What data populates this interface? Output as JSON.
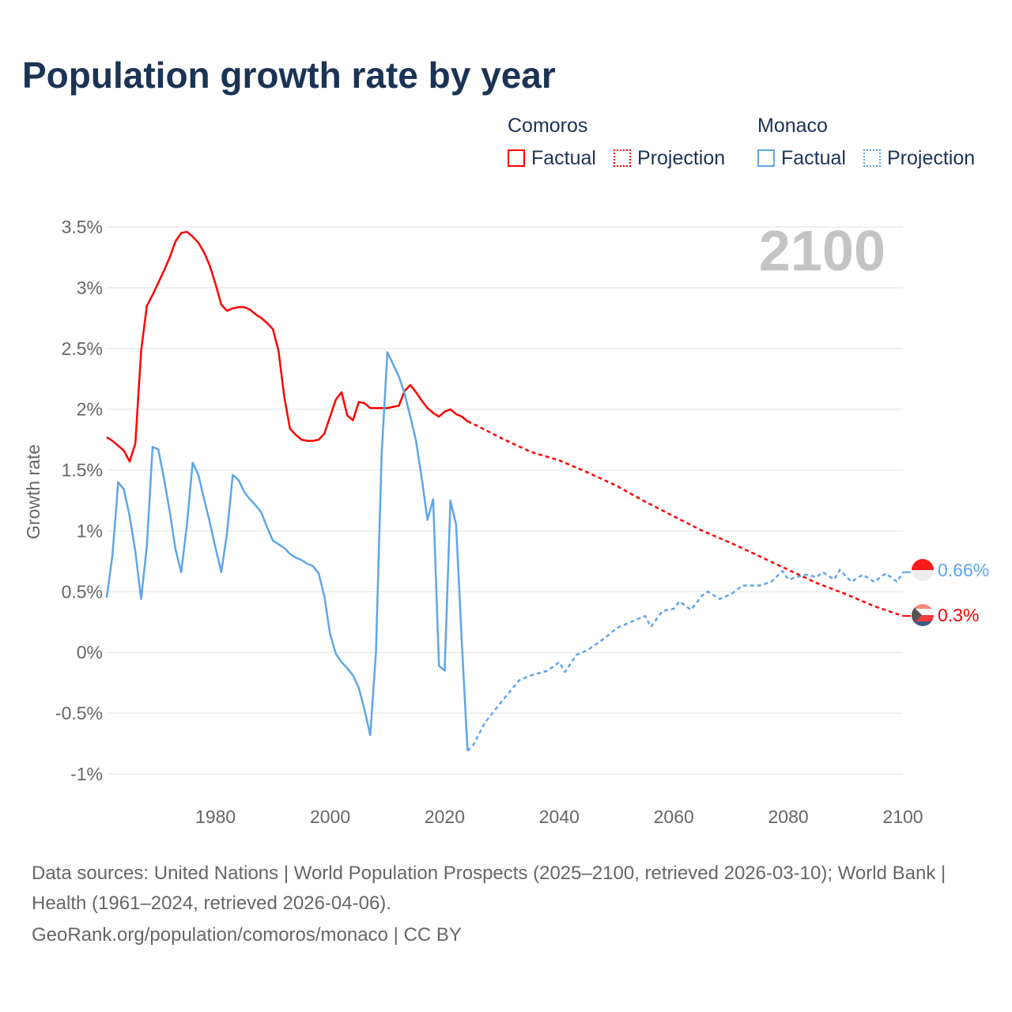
{
  "title": "Population growth rate by year",
  "legend": {
    "groups": [
      {
        "name": "Comoros",
        "color": "#ff0000",
        "factual": "Factual",
        "projection": "Projection"
      },
      {
        "name": "Monaco",
        "color": "#5ea6ea",
        "factual": "Factual",
        "projection": "Projection"
      }
    ]
  },
  "year_label": "2100",
  "end_labels": {
    "monaco": "0.66%",
    "comoros": "0.3%"
  },
  "footer": {
    "line1": "Data sources: United Nations | World Population Prospects (2025–2100, retrieved 2026-03-10); World Bank | Health (1961–2024, retrieved 2026-04-06).",
    "line2": "GeoRank.org/population/comoros/monaco | CC BY"
  },
  "chart_data": {
    "type": "line",
    "title": "Population growth rate by year",
    "ylabel": "Growth rate",
    "xlabel": "",
    "xlim": [
      1961,
      2100
    ],
    "ylim": [
      -1,
      3.5
    ],
    "grid": true,
    "yticks": [
      -1,
      -0.5,
      0,
      0.5,
      1,
      1.5,
      2,
      2.5,
      3,
      3.5
    ],
    "ytick_labels": [
      "-1%",
      "-0.5%",
      "0%",
      "0.5%",
      "1%",
      "1.5%",
      "2%",
      "2.5%",
      "3%",
      "3.5%"
    ],
    "xticks": [
      1980,
      2000,
      2020,
      2040,
      2060,
      2080,
      2100
    ],
    "xtick_labels": [
      "1980",
      "2000",
      "2020",
      "2040",
      "2060",
      "2080",
      "2100"
    ],
    "series": [
      {
        "name": "Comoros Factual",
        "color": "#ff0000",
        "dash": false,
        "x": [
          1961,
          1962,
          1963,
          1964,
          1965,
          1966,
          1967,
          1968,
          1969,
          1970,
          1971,
          1972,
          1973,
          1974,
          1975,
          1976,
          1977,
          1978,
          1979,
          1980,
          1981,
          1982,
          1983,
          1984,
          1985,
          1986,
          1987,
          1988,
          1989,
          1990,
          1991,
          1992,
          1993,
          1994,
          1995,
          1996,
          1997,
          1998,
          1999,
          2000,
          2001,
          2002,
          2003,
          2004,
          2005,
          2006,
          2007,
          2008,
          2009,
          2010,
          2011,
          2012,
          2013,
          2014,
          2015,
          2016,
          2017,
          2018,
          2019,
          2020,
          2021,
          2022,
          2023,
          2024
        ],
        "y": [
          1.77,
          1.74,
          1.7,
          1.66,
          1.57,
          1.72,
          2.48,
          2.85,
          2.94,
          3.04,
          3.14,
          3.25,
          3.38,
          3.45,
          3.46,
          3.42,
          3.37,
          3.29,
          3.18,
          3.03,
          2.86,
          2.81,
          2.83,
          2.84,
          2.84,
          2.82,
          2.78,
          2.75,
          2.71,
          2.66,
          2.48,
          2.1,
          1.84,
          1.79,
          1.75,
          1.74,
          1.74,
          1.75,
          1.8,
          1.94,
          2.08,
          2.14,
          1.95,
          1.91,
          2.06,
          2.05,
          2.01,
          2.01,
          2.01,
          2.01,
          2.02,
          2.03,
          2.15,
          2.2,
          2.14,
          2.07,
          2.01,
          1.97,
          1.94,
          1.98,
          2.0,
          1.96,
          1.94,
          1.9
        ]
      },
      {
        "name": "Comoros Projection",
        "color": "#ff0000",
        "dash": true,
        "x": [
          2024,
          2025,
          2030,
          2035,
          2040,
          2045,
          2050,
          2055,
          2060,
          2065,
          2070,
          2075,
          2080,
          2085,
          2090,
          2095,
          2100
        ],
        "y": [
          1.9,
          1.88,
          1.76,
          1.65,
          1.58,
          1.48,
          1.37,
          1.24,
          1.12,
          1.0,
          0.9,
          0.79,
          0.68,
          0.57,
          0.48,
          0.38,
          0.3
        ]
      },
      {
        "name": "Monaco Factual",
        "color": "#5ea6ea",
        "dash": false,
        "x": [
          1961,
          1962,
          1963,
          1964,
          1965,
          1966,
          1967,
          1968,
          1969,
          1970,
          1971,
          1972,
          1973,
          1974,
          1975,
          1976,
          1977,
          1978,
          1979,
          1980,
          1981,
          1982,
          1983,
          1984,
          1985,
          1986,
          1987,
          1988,
          1989,
          1990,
          1991,
          1992,
          1993,
          1994,
          1995,
          1996,
          1997,
          1998,
          1999,
          2000,
          2001,
          2002,
          2003,
          2004,
          2005,
          2006,
          2007,
          2008,
          2009,
          2010,
          2011,
          2012,
          2013,
          2014,
          2015,
          2016,
          2017,
          2018,
          2019,
          2020,
          2021,
          2022,
          2023,
          2024
        ],
        "y": [
          0.45,
          0.8,
          1.4,
          1.34,
          1.12,
          0.83,
          0.44,
          0.87,
          1.69,
          1.67,
          1.43,
          1.16,
          0.85,
          0.66,
          1.05,
          1.56,
          1.46,
          1.26,
          1.07,
          0.86,
          0.66,
          0.98,
          1.46,
          1.42,
          1.32,
          1.26,
          1.21,
          1.15,
          1.03,
          0.92,
          0.89,
          0.86,
          0.81,
          0.78,
          0.76,
          0.73,
          0.71,
          0.65,
          0.46,
          0.15,
          -0.01,
          -0.08,
          -0.13,
          -0.19,
          -0.29,
          -0.47,
          -0.68,
          0.0,
          1.63,
          2.47,
          2.37,
          2.27,
          2.13,
          1.94,
          1.74,
          1.43,
          1.09,
          1.26,
          -0.11,
          -0.15,
          1.25,
          1.05,
          0.07,
          -0.81
        ]
      },
      {
        "name": "Monaco Projection",
        "color": "#5ea6ea",
        "dash": true,
        "x": [
          2024,
          2025,
          2027,
          2030,
          2033,
          2035,
          2038,
          2040,
          2041,
          2043,
          2045,
          2048,
          2050,
          2053,
          2055,
          2056,
          2058,
          2060,
          2061,
          2063,
          2065,
          2066,
          2068,
          2070,
          2072,
          2075,
          2077,
          2079,
          2080,
          2083,
          2085,
          2086,
          2088,
          2089,
          2091,
          2093,
          2095,
          2097,
          2099,
          2100
        ],
        "y": [
          -0.81,
          -0.76,
          -0.58,
          -0.4,
          -0.23,
          -0.19,
          -0.15,
          -0.08,
          -0.16,
          -0.02,
          0.02,
          0.12,
          0.2,
          0.26,
          0.3,
          0.21,
          0.34,
          0.36,
          0.42,
          0.35,
          0.47,
          0.5,
          0.44,
          0.48,
          0.55,
          0.55,
          0.58,
          0.67,
          0.6,
          0.64,
          0.62,
          0.66,
          0.6,
          0.68,
          0.58,
          0.64,
          0.58,
          0.65,
          0.58,
          0.66
        ]
      }
    ]
  }
}
